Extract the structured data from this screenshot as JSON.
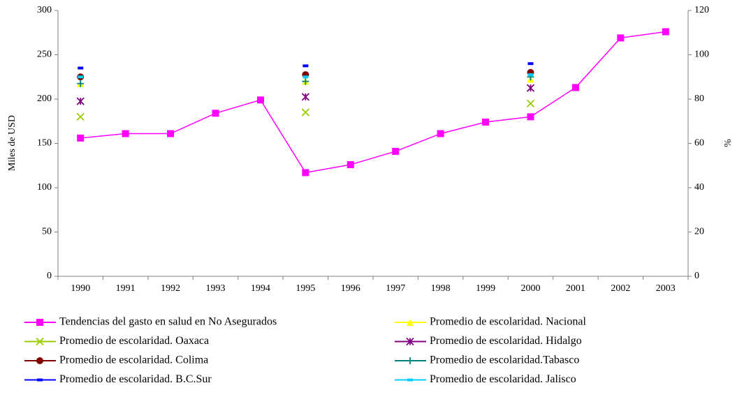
{
  "chart_data": {
    "type": "line",
    "y_label": "Miles de USD",
    "y2_label": "%",
    "categories": [
      "1990",
      "1991",
      "1992",
      "1993",
      "1994",
      "1995",
      "1996",
      "1997",
      "1998",
      "1999",
      "2000",
      "2001",
      "2002",
      "2003"
    ],
    "ylim": [
      0,
      300
    ],
    "yticks": [
      0,
      50,
      100,
      150,
      200,
      250,
      300
    ],
    "y2lim": [
      0,
      120
    ],
    "y2ticks": [
      0,
      20,
      40,
      60,
      80,
      100,
      120
    ],
    "series": [
      {
        "name": "Tendencias del gasto en salud en No Asegurados",
        "color": "#ff00ff",
        "marker": "square",
        "connect": true,
        "values": [
          156,
          161,
          161,
          184,
          199,
          117,
          126,
          141,
          161,
          174,
          180,
          213,
          269,
          276
        ]
      },
      {
        "name": "Promedio de escolaridad. Nacional",
        "color": "#ffff00",
        "marker": "triangle",
        "axis": "y2",
        "values": [
          87,
          null,
          null,
          null,
          null,
          88,
          null,
          null,
          null,
          null,
          89,
          null,
          null,
          null
        ]
      },
      {
        "name": "Promedio de escolaridad. Oaxaca",
        "color": "#99cc00",
        "marker": "x",
        "axis": "y2",
        "values": [
          72,
          null,
          null,
          null,
          null,
          74,
          null,
          null,
          null,
          null,
          78,
          null,
          null,
          null
        ]
      },
      {
        "name": "Promedio de escolaridad. Hidalgo",
        "color": "#800080",
        "marker": "star",
        "axis": "y2",
        "values": [
          79,
          null,
          null,
          null,
          null,
          81,
          null,
          null,
          null,
          null,
          85,
          null,
          null,
          null
        ]
      },
      {
        "name": "Promedio de escolaridad. Colima",
        "color": "#800000",
        "marker": "circle",
        "axis": "y2",
        "values": [
          90,
          null,
          null,
          null,
          null,
          91,
          null,
          null,
          null,
          null,
          92,
          null,
          null,
          null
        ]
      },
      {
        "name": "Promedio de escolaridad.Tabasco",
        "color": "#008080",
        "marker": "plus",
        "axis": "y2",
        "values": [
          87,
          null,
          null,
          null,
          null,
          88,
          null,
          null,
          null,
          null,
          90,
          null,
          null,
          null
        ]
      },
      {
        "name": "Promedio de escolaridad. B.C.Sur",
        "color": "#0000ff",
        "marker": "dash",
        "axis": "y2",
        "values": [
          94,
          null,
          null,
          null,
          null,
          95,
          null,
          null,
          null,
          null,
          96,
          null,
          null,
          null
        ]
      },
      {
        "name": "Promedio de escolaridad. Jalisco",
        "color": "#00ccff",
        "marker": "dash",
        "axis": "y2",
        "values": [
          90,
          null,
          null,
          null,
          null,
          90,
          null,
          null,
          null,
          null,
          91,
          null,
          null,
          null
        ]
      }
    ]
  }
}
